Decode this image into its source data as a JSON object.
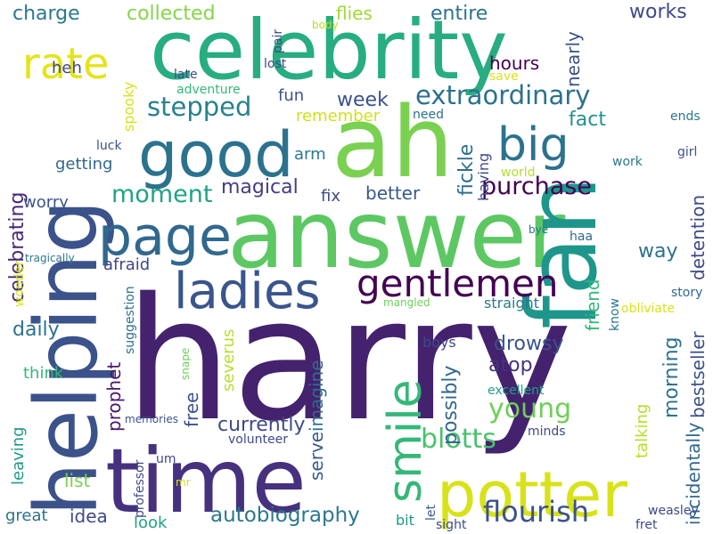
{
  "words": [
    {
      "text": "harry",
      "color": "#44226e"
    },
    {
      "text": "answer",
      "color": "#5dc863"
    },
    {
      "text": "celebrity",
      "color": "#27ad81"
    },
    {
      "text": "ah",
      "color": "#7ad151"
    },
    {
      "text": "time",
      "color": "#46317e"
    },
    {
      "text": "helping",
      "color": "#3b528b"
    },
    {
      "text": "fan",
      "color": "#1f968b"
    },
    {
      "text": "potter",
      "color": "#d8e219"
    },
    {
      "text": "good",
      "color": "#2c728e"
    },
    {
      "text": "page",
      "color": "#31688e"
    },
    {
      "text": "ladies",
      "color": "#39558c"
    },
    {
      "text": "gentlemen",
      "color": "#440154"
    },
    {
      "text": "smile",
      "color": "#35b779"
    },
    {
      "text": "big",
      "color": "#2c728e"
    },
    {
      "text": "rate",
      "color": "#e5e419"
    },
    {
      "text": "extraordinary",
      "color": "#2d718e"
    },
    {
      "text": "flourish",
      "color": "#3b528b"
    },
    {
      "text": "blotts",
      "color": "#4ac16d"
    },
    {
      "text": "young",
      "color": "#6ece58"
    },
    {
      "text": "stepped",
      "color": "#26828e"
    },
    {
      "text": "moment",
      "color": "#20a386"
    },
    {
      "text": "purchase",
      "color": "#440154"
    },
    {
      "text": "autobiography",
      "color": "#2a788e"
    },
    {
      "text": "currently",
      "color": "#3e4a89"
    },
    {
      "text": "morning",
      "color": "#2d708e"
    },
    {
      "text": "possibly",
      "color": "#31688e"
    },
    {
      "text": "fickle",
      "color": "#2d708e"
    },
    {
      "text": "magical",
      "color": "#433e85"
    },
    {
      "text": "better",
      "color": "#38598c"
    },
    {
      "text": "detention",
      "color": "#3e4a89"
    },
    {
      "text": "bestseller",
      "color": "#3b528b"
    },
    {
      "text": "incidentally",
      "color": "#31688e"
    },
    {
      "text": "fact",
      "color": "#21918c"
    },
    {
      "text": "week",
      "color": "#3b528b"
    },
    {
      "text": "way",
      "color": "#2c728e"
    },
    {
      "text": "friend",
      "color": "#35b779"
    },
    {
      "text": "atop",
      "color": "#46327e"
    },
    {
      "text": "drowsy",
      "color": "#39568c"
    },
    {
      "text": "prophet",
      "color": "#48186a"
    },
    {
      "text": "daily",
      "color": "#2c728e"
    },
    {
      "text": "celebrating",
      "color": "#482878"
    },
    {
      "text": "collected",
      "color": "#86d549"
    },
    {
      "text": "charge",
      "color": "#2a788e"
    },
    {
      "text": "works",
      "color": "#3e4a89"
    },
    {
      "text": "entire",
      "color": "#2c728e"
    },
    {
      "text": "hours",
      "color": "#440154"
    },
    {
      "text": "nearly",
      "color": "#3b528b"
    },
    {
      "text": "flies",
      "color": "#a0da39"
    },
    {
      "text": "imagine",
      "color": "#2e6e8e"
    },
    {
      "text": "serve",
      "color": "#38598c"
    },
    {
      "text": "free",
      "color": "#3b528b"
    },
    {
      "text": "severus",
      "color": "#b5de2b"
    },
    {
      "text": "talking",
      "color": "#b5de2b"
    },
    {
      "text": "idea",
      "color": "#3e4a89"
    },
    {
      "text": "list",
      "color": "#7ad151"
    },
    {
      "text": "leaving",
      "color": "#1f9a8a"
    },
    {
      "text": "great",
      "color": "#2d718e"
    },
    {
      "text": "look",
      "color": "#20a386"
    },
    {
      "text": "think",
      "color": "#35b779"
    },
    {
      "text": "worry",
      "color": "#3b528b"
    },
    {
      "text": "getting",
      "color": "#31688e"
    },
    {
      "text": "afraid",
      "color": "#414487"
    },
    {
      "text": "heh",
      "color": "#414487"
    },
    {
      "text": "fun",
      "color": "#3b528b"
    },
    {
      "text": "spooky",
      "color": "#d8e219"
    },
    {
      "text": "remember",
      "color": "#d0e11c"
    },
    {
      "text": "fix",
      "color": "#3e4989"
    },
    {
      "text": "arm",
      "color": "#2a788e"
    },
    {
      "text": "having",
      "color": "#3e4989"
    },
    {
      "text": "straight",
      "color": "#2a788e"
    },
    {
      "text": "boys",
      "color": "#3e4989"
    },
    {
      "text": "bit",
      "color": "#1f9a8a"
    },
    {
      "text": "excellent",
      "color": "#1fa187"
    },
    {
      "text": "wonder",
      "color": "#d8e219"
    },
    {
      "text": "suggestion",
      "color": "#2d708e"
    },
    {
      "text": "professor",
      "color": "#3e4989"
    },
    {
      "text": "snape",
      "color": "#6ece58"
    },
    {
      "text": "volunteer",
      "color": "#3e4989"
    },
    {
      "text": "memories",
      "color": "#3b528b"
    },
    {
      "text": "um",
      "color": "#3e4989"
    },
    {
      "text": "mr",
      "color": "#d8e219"
    },
    {
      "text": "minds",
      "color": "#3e4989"
    },
    {
      "text": "let",
      "color": "#38598c"
    },
    {
      "text": "sight",
      "color": "#3e4989"
    },
    {
      "text": "weasley",
      "color": "#3e4989"
    },
    {
      "text": "fret",
      "color": "#3e4989"
    },
    {
      "text": "story",
      "color": "#31688e"
    },
    {
      "text": "obliviate",
      "color": "#d8e219"
    },
    {
      "text": "know",
      "color": "#2a788e"
    },
    {
      "text": "haa",
      "color": "#31688e"
    },
    {
      "text": "bye",
      "color": "#2c728e"
    },
    {
      "text": "work",
      "color": "#2a788e"
    },
    {
      "text": "world",
      "color": "#b5de2b"
    },
    {
      "text": "girl",
      "color": "#3b528b"
    },
    {
      "text": "ends",
      "color": "#2a788e"
    },
    {
      "text": "mangled",
      "color": "#6ece58"
    },
    {
      "text": "tragically",
      "color": "#2a788e"
    },
    {
      "text": "luck",
      "color": "#3b528b"
    },
    {
      "text": "adventure",
      "color": "#35b779"
    },
    {
      "text": "need",
      "color": "#2c728e"
    },
    {
      "text": "save",
      "color": "#d8e219"
    },
    {
      "text": "late",
      "color": "#3e4989"
    },
    {
      "text": "lost",
      "color": "#3e4989"
    },
    {
      "text": "pair",
      "color": "#3e4989"
    },
    {
      "text": "body",
      "color": "#b5de2b"
    }
  ]
}
